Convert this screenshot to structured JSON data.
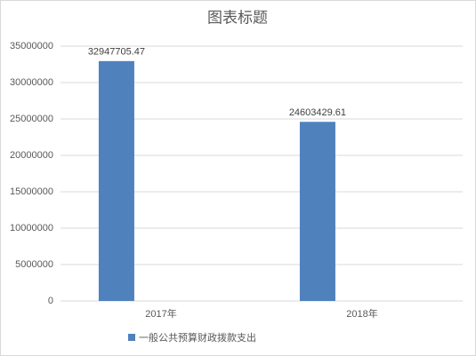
{
  "chart_data": {
    "type": "bar",
    "title": "图表标题",
    "categories": [
      "2017年",
      "2018年"
    ],
    "series": [
      {
        "name": "一般公共预算财政拨款支出",
        "color": "#4f81bd",
        "values": [
          32947705.47,
          24603429.61
        ]
      }
    ],
    "ylim": [
      0,
      35000000
    ],
    "yticks": [
      0,
      5000000,
      10000000,
      15000000,
      20000000,
      25000000,
      30000000,
      35000000
    ],
    "grid": true,
    "legend": "bottom"
  }
}
